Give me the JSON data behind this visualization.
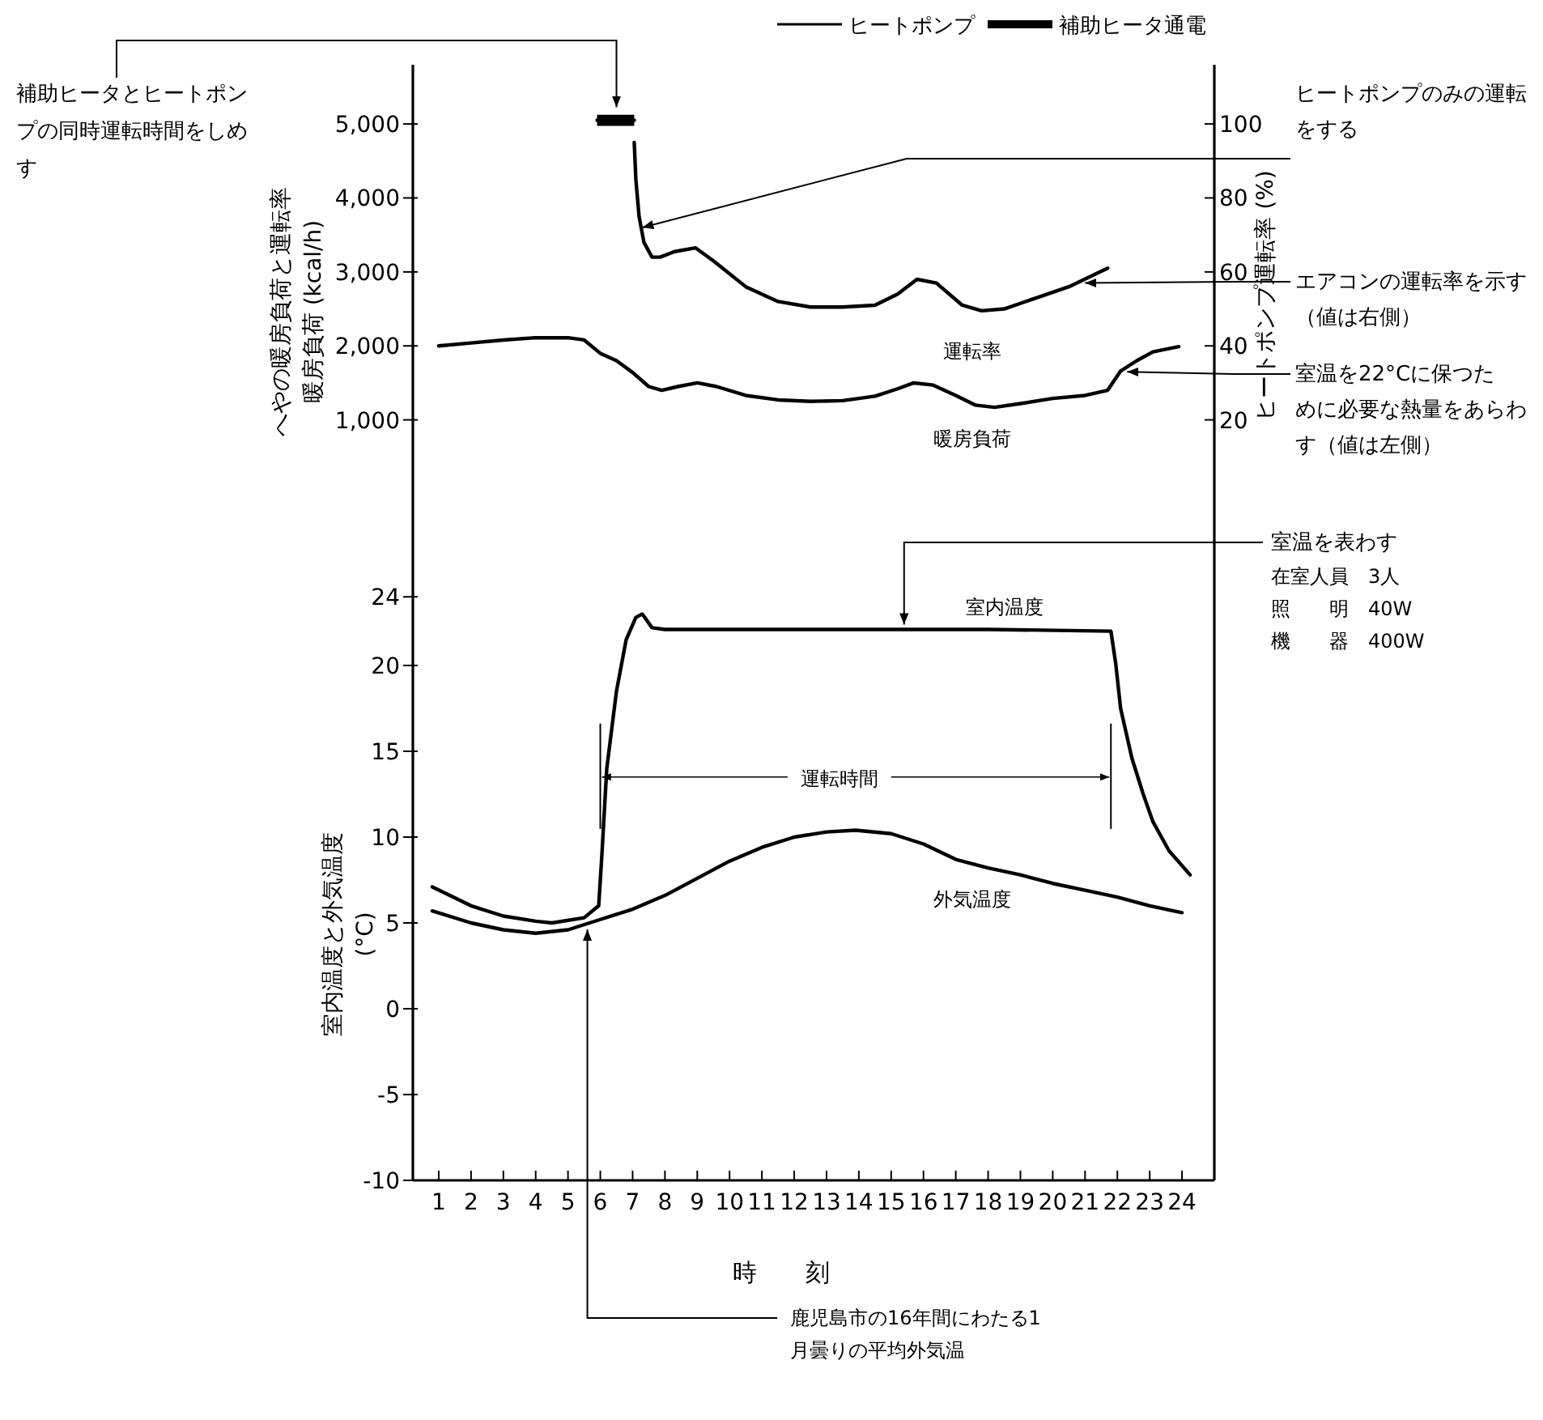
{
  "chart_data": [
    {
      "type": "line",
      "title": "へやの暖房負荷と運転率",
      "ylabel": "暖房負荷 (kcal/h)",
      "y2label": "ヒートポンプ運転率 (%)",
      "xlim": [
        0.2,
        25
      ],
      "ylim": [
        0,
        5800
      ],
      "y2lim": [
        0,
        116
      ],
      "yticks": [
        {
          "value": 1000,
          "label": "1,000"
        },
        {
          "value": 2000,
          "label": "2,000"
        },
        {
          "value": 3000,
          "label": "3,000"
        },
        {
          "value": 4000,
          "label": "4,000"
        },
        {
          "value": 5000,
          "label": "5,000"
        }
      ],
      "y2ticks": [
        20,
        40,
        60,
        80,
        100
      ],
      "tick_labels": "y",
      "grid": false,
      "legend": "top",
      "marker": "none",
      "line_style": "solid",
      "series": [
        {
          "name": "ヒートポンプ",
          "color": "#000000",
          "axis": "y2",
          "x": [
            7.05,
            7.1,
            7.2,
            7.35,
            7.6,
            7.85,
            8.3,
            8.95,
            9.5,
            10.5,
            11.5,
            12.5,
            13.5,
            14.5,
            15.2,
            15.8,
            16.4,
            17.2,
            17.8,
            18.5,
            19.5,
            20.5,
            21.7
          ],
          "values": [
            95,
            85,
            75,
            68,
            64,
            64,
            65.5,
            66.5,
            63,
            56,
            52,
            50.5,
            50.5,
            51,
            54,
            58,
            57,
            51,
            49.5,
            50,
            53,
            56,
            61
          ]
        },
        {
          "name": "補助ヒータ通電",
          "color": "#000000",
          "axis": "y2",
          "x": [
            5.9,
            7.05
          ],
          "values": [
            101,
            101
          ],
          "lower": [
            99.5,
            99.5
          ],
          "upper": [
            102.5,
            102.5
          ]
        },
        {
          "name": "暖房負荷",
          "color": "#000000",
          "x": [
            1,
            2,
            3,
            4,
            5,
            5.5,
            6,
            6.5,
            7,
            7.5,
            7.9,
            8.4,
            9,
            9.6,
            10.5,
            11.5,
            12.5,
            13.5,
            14.5,
            15.2,
            15.7,
            16.3,
            17,
            17.6,
            18.2,
            19,
            20,
            21,
            21.7,
            22.1,
            22.6,
            23.1,
            23.9
          ],
          "values": [
            2000,
            2040,
            2080,
            2110,
            2110,
            2080,
            1900,
            1800,
            1640,
            1450,
            1400,
            1450,
            1500,
            1450,
            1330,
            1270,
            1250,
            1260,
            1320,
            1420,
            1500,
            1470,
            1330,
            1200,
            1170,
            1220,
            1290,
            1330,
            1400,
            1660,
            1800,
            1920,
            1990
          ]
        }
      ],
      "annotations": [
        {
          "text": "補助ヒータとヒートポンプの同時運転時間をしめす",
          "x": 6.5,
          "y": 5050
        },
        {
          "text": "ヒートポンプのみの運転をする",
          "x": 7.3,
          "y": 3600
        },
        {
          "text": "エアコンの運転率を示す（値は右側）",
          "x": 21.0,
          "y": 2850
        },
        {
          "text": "室温を22°Cに保つために必要な熱量をあらわす（値は左側）",
          "x": 22.3,
          "y": 1650
        },
        {
          "text": "運転率",
          "x": 17.5,
          "y": 2500
        }
      ]
    },
    {
      "type": "line",
      "xlabel": "時　　刻",
      "ylabel": "室内温度と外気温度\n(°C)",
      "xlim": [
        0.2,
        25
      ],
      "ylim": [
        -10,
        30
      ],
      "xticks": [
        1,
        2,
        3,
        4,
        5,
        6,
        7,
        8,
        9,
        10,
        11,
        12,
        13,
        14,
        15,
        16,
        17,
        18,
        19,
        20,
        21,
        22,
        23,
        24
      ],
      "yticks": [
        -10,
        -5,
        0,
        5,
        10,
        15,
        20,
        24
      ],
      "grid": false,
      "marker": "none",
      "line_style": "solid",
      "series": [
        {
          "name": "室内温度",
          "color": "#000000",
          "x": [
            0.8,
            2,
            3,
            4,
            4.5,
            5.5,
            5.95,
            6.05,
            6.2,
            6.5,
            6.8,
            7.1,
            7.3,
            7.6,
            8,
            10,
            14,
            18,
            21.8,
            21.95,
            22.1,
            22.45,
            22.8,
            23.1,
            23.6,
            24.25
          ],
          "values": [
            7.1,
            6.0,
            5.4,
            5.1,
            5.0,
            5.3,
            6.0,
            9,
            14,
            18.5,
            21.5,
            22.8,
            23.0,
            22.2,
            22.1,
            22.1,
            22.1,
            22.1,
            22.0,
            20.1,
            17.5,
            14.6,
            12.5,
            10.9,
            9.2,
            7.8
          ]
        },
        {
          "name": "外気温度",
          "color": "#000000",
          "x": [
            0.8,
            2,
            3,
            4,
            5,
            6,
            7,
            8,
            9,
            10,
            11,
            12,
            13,
            13.9,
            15,
            16,
            17,
            18,
            19,
            20,
            21,
            22,
            23,
            24
          ],
          "values": [
            5.7,
            5.0,
            4.6,
            4.4,
            4.6,
            5.2,
            5.8,
            6.6,
            7.6,
            8.6,
            9.4,
            10.0,
            10.3,
            10.4,
            10.2,
            9.6,
            8.7,
            8.2,
            7.8,
            7.3,
            6.9,
            6.5,
            6.0,
            5.6
          ]
        }
      ],
      "ref_lines": [
        {
          "axis": "x",
          "value": 6.0
        },
        {
          "axis": "x",
          "value": 21.8
        }
      ],
      "annotations": [
        {
          "text": "室温を表わす",
          "x": 15.4,
          "y": 22.1
        },
        "在室人員　3人",
        "照　　明　40W",
        "機　　器　400W",
        {
          "text": "鹿児島市の16年間にわたる1月曇りの平均外気温",
          "x": 5.6,
          "y": 4.9
        },
        "運転時間"
      ]
    }
  ]
}
